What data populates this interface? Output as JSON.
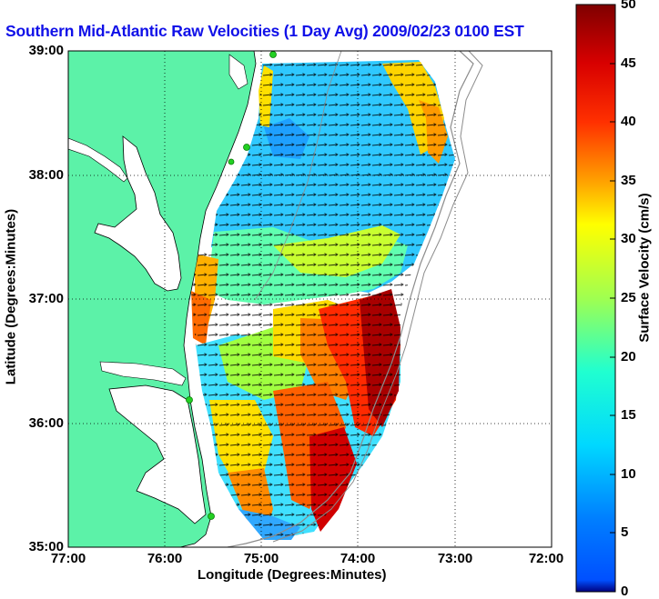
{
  "title": "Southern Mid-Atlantic Raw Velocities (1 Day Avg) 2009/02/23 0100 EST",
  "xlabel": "Longitude (Degrees:Minutes)",
  "ylabel": "Latitude (Degrees:Minutes)",
  "x_ticks": [
    "77:00",
    "76:00",
    "75:00",
    "74:00",
    "73:00",
    "72:00"
  ],
  "y_ticks": [
    "39:00",
    "38:00",
    "37:00",
    "36:00",
    "35:00"
  ],
  "colorbar": {
    "label": "Surface Velocity (cm/s)",
    "ticks": [
      "0",
      "5",
      "10",
      "15",
      "20",
      "25",
      "30",
      "35",
      "40",
      "45",
      "50"
    ],
    "range": [
      0,
      50
    ],
    "colormap": "jet"
  },
  "colors": {
    "land": "#5cf2a8",
    "title": "#1010e8",
    "ocean_background": "#ffffff",
    "coastline": "#000000",
    "bathymetry": "#8c8c8c",
    "station": "#22d022"
  },
  "map": {
    "lon_range": [
      -77,
      -72
    ],
    "lat_range": [
      35,
      39
    ],
    "grid": "dotted",
    "hf_radar_stations": 5
  }
}
